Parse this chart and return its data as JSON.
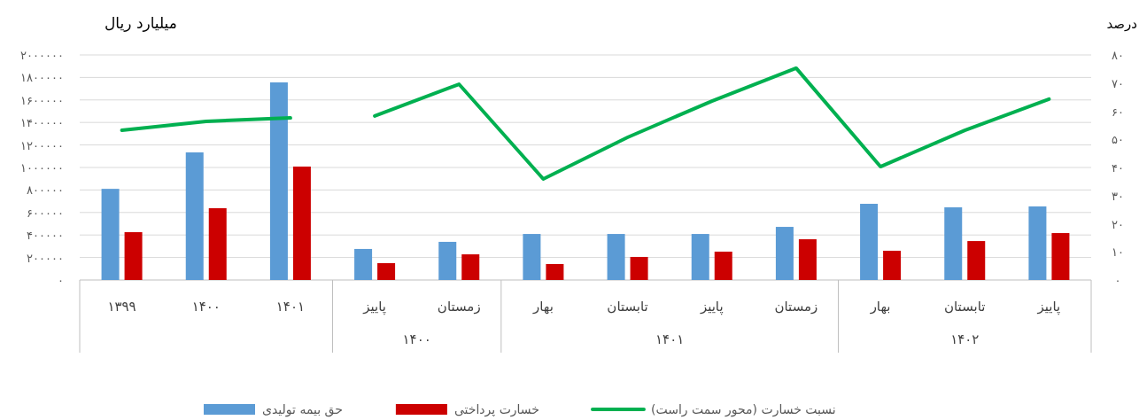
{
  "chart_data": {
    "type": "bar",
    "categories": [
      "۱۳۹۹",
      "۱۴۰۰",
      "۱۴۰۱",
      "پاییز",
      "زمستان",
      "بهار",
      "تابستان",
      "پاییز",
      "زمستان",
      "بهار",
      "تابستان",
      "پاییز"
    ],
    "ylabel": "میلیارد ریال",
    "y2label": "درصد",
    "annotations": [
      "۱۴۰۰",
      "۱۴۰۱",
      "۱۴۰۲"
    ],
    "series": [
      {
        "name": "حق بیمه تولیدی",
        "color": "#5b9bd5",
        "values": [
          810000,
          1134000,
          1756000,
          276000,
          339000,
          409000,
          409000,
          409000,
          472000,
          677000,
          646000,
          654000
        ]
      },
      {
        "name": "خسارت پرداختی",
        "color": "#cc0000",
        "values": [
          425000,
          638000,
          1008000,
          150000,
          228000,
          142000,
          205000,
          252000,
          362000,
          260000,
          346000,
          417000
        ]
      },
      {
        "name": "نسبت خسارت (محور سمت راست)",
        "type": "line",
        "axis": "y2",
        "color": "#00b050",
        "values": [
          53.2,
          56.4,
          57.6,
          null,
          null,
          null,
          null,
          null,
          null,
          null,
          null,
          null
        ]
      },
      {
        "type": "line",
        "axis": "y2",
        "color": "#00b050",
        "values": [
          null,
          null,
          null,
          58.3,
          69.6,
          35.9,
          50.7,
          63.6,
          75.3,
          40.3,
          53.2,
          64.3
        ]
      }
    ],
    "ylim": [
      0,
      2000000
    ],
    "yticks": [
      {
        "value": 0,
        "label": "۰"
      },
      {
        "value": 200000,
        "label": "۲۰۰۰۰۰"
      },
      {
        "value": 400000,
        "label": "۴۰۰۰۰۰"
      },
      {
        "value": 600000,
        "label": "۶۰۰۰۰۰"
      },
      {
        "value": 800000,
        "label": "۸۰۰۰۰۰"
      },
      {
        "value": 1000000,
        "label": "۱۰۰۰۰۰۰"
      },
      {
        "value": 1200000,
        "label": "۱۲۰۰۰۰۰"
      },
      {
        "value": 1400000,
        "label": "۱۴۰۰۰۰۰"
      },
      {
        "value": 1600000,
        "label": "۱۶۰۰۰۰۰"
      },
      {
        "value": 1800000,
        "label": "۱۸۰۰۰۰۰"
      },
      {
        "value": 2000000,
        "label": "۲۰۰۰۰۰۰"
      }
    ],
    "y2lim": [
      0,
      80
    ],
    "y2ticks": [
      {
        "value": 0,
        "label": "۰"
      },
      {
        "value": 10,
        "label": "۱۰"
      },
      {
        "value": 20,
        "label": "۲۰"
      },
      {
        "value": 30,
        "label": "۳۰"
      },
      {
        "value": 40,
        "label": "۴۰"
      },
      {
        "value": 50,
        "label": "۵۰"
      },
      {
        "value": 60,
        "label": "۶۰"
      },
      {
        "value": 70,
        "label": "۷۰"
      },
      {
        "value": 80,
        "label": "۸۰"
      }
    ],
    "grid": "y",
    "legend": "bottom"
  }
}
